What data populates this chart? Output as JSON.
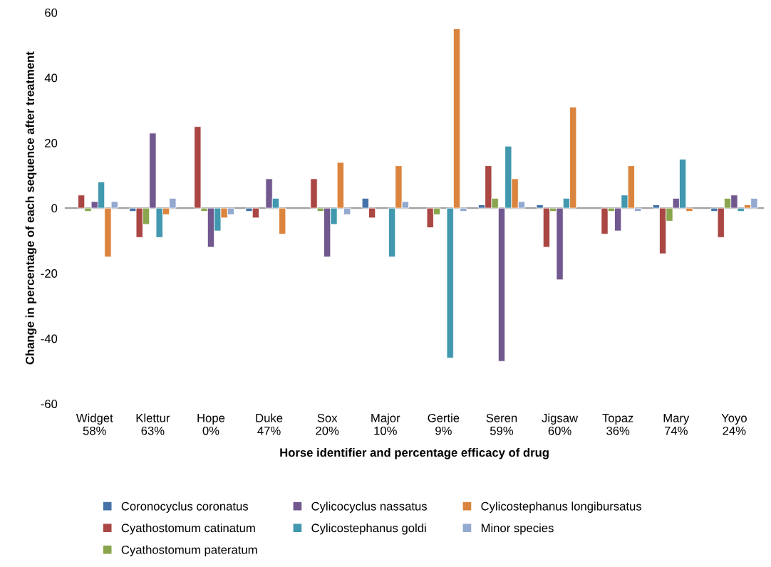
{
  "chart_data": {
    "type": "bar",
    "xlabel": "Horse identifier and percentage efficacy of drug",
    "ylabel": "Change in percentage of each sequence after treatment",
    "categories": [
      "Widget\n58%",
      "Klettur\n63%",
      "Hope\n0%",
      "Duke\n47%",
      "Sox\n20%",
      "Major\n10%",
      "Gertie\n9%",
      "Seren\n59%",
      "Jigsaw\n60%",
      "Topaz\n36%",
      "Mary\n74%",
      "Yoyo\n24%"
    ],
    "series": [
      {
        "name": "Coronocyclus coronatus",
        "color": "#4572a7",
        "values": [
          null,
          -1,
          null,
          -1,
          null,
          3,
          null,
          1,
          1,
          null,
          1,
          -1
        ]
      },
      {
        "name": "Cyathostomum catinatum",
        "color": "#aa4643",
        "values": [
          4,
          -9,
          25,
          -3,
          9,
          -3,
          -6,
          13,
          -12,
          -8,
          -14,
          -9
        ]
      },
      {
        "name": "Cyathostomum pateratum",
        "color": "#89a54e",
        "values": [
          -1,
          -5,
          -1,
          null,
          -1,
          null,
          -2,
          3,
          -1,
          -1,
          -4,
          3
        ]
      },
      {
        "name": "Cylicocyclus nassatus",
        "color": "#71588f",
        "values": [
          2,
          23,
          -12,
          9,
          -15,
          null,
          null,
          -47,
          -22,
          -7,
          3,
          4
        ]
      },
      {
        "name": "Cylicostephanus goldi",
        "color": "#4198af",
        "values": [
          8,
          -9,
          -7,
          3,
          -5,
          -15,
          -46,
          19,
          3,
          4,
          15,
          -1
        ]
      },
      {
        "name": "Cylicostephanus longibursatus",
        "color": "#db843d",
        "values": [
          -15,
          -2,
          -3,
          -8,
          14,
          13,
          55,
          9,
          31,
          13,
          -1,
          1
        ]
      },
      {
        "name": "Minor species",
        "color": "#93a9cf",
        "values": [
          2,
          3,
          -2,
          null,
          -2,
          2,
          -1,
          2,
          null,
          -1,
          null,
          3
        ]
      }
    ],
    "ylim": [
      -60,
      60
    ],
    "yticks": [
      -60,
      -40,
      -20,
      0,
      20,
      40,
      60
    ],
    "legend": "bottom"
  }
}
